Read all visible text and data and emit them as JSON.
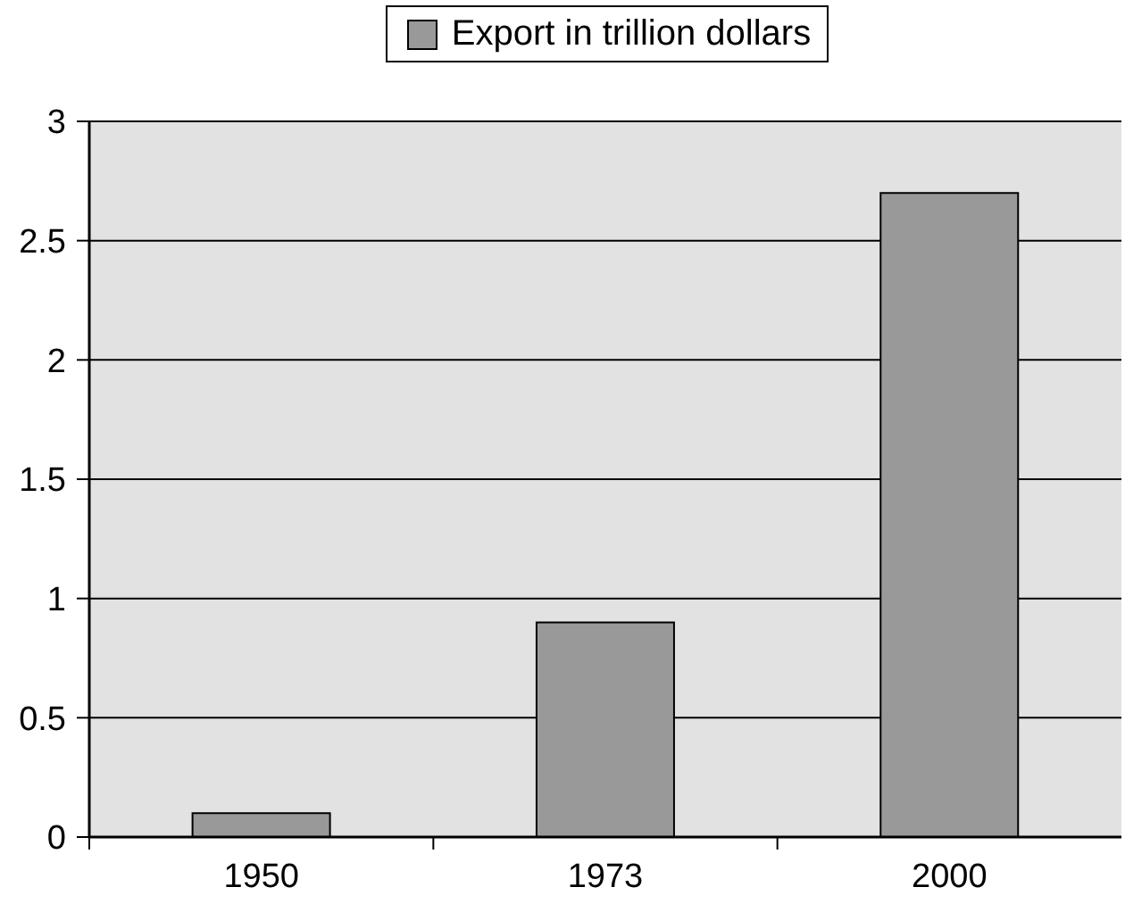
{
  "chart_data": {
    "type": "bar",
    "categories": [
      "1950",
      "1973",
      "2000"
    ],
    "series": [
      {
        "name": "Export in trillion dollars",
        "color": "#999999",
        "values": [
          0.1,
          0.9,
          2.7
        ]
      }
    ],
    "ylim": [
      0,
      3
    ],
    "yticks": [
      0,
      0.5,
      1,
      1.5,
      2,
      2.5,
      3
    ],
    "grid": "y",
    "legend": "top"
  }
}
